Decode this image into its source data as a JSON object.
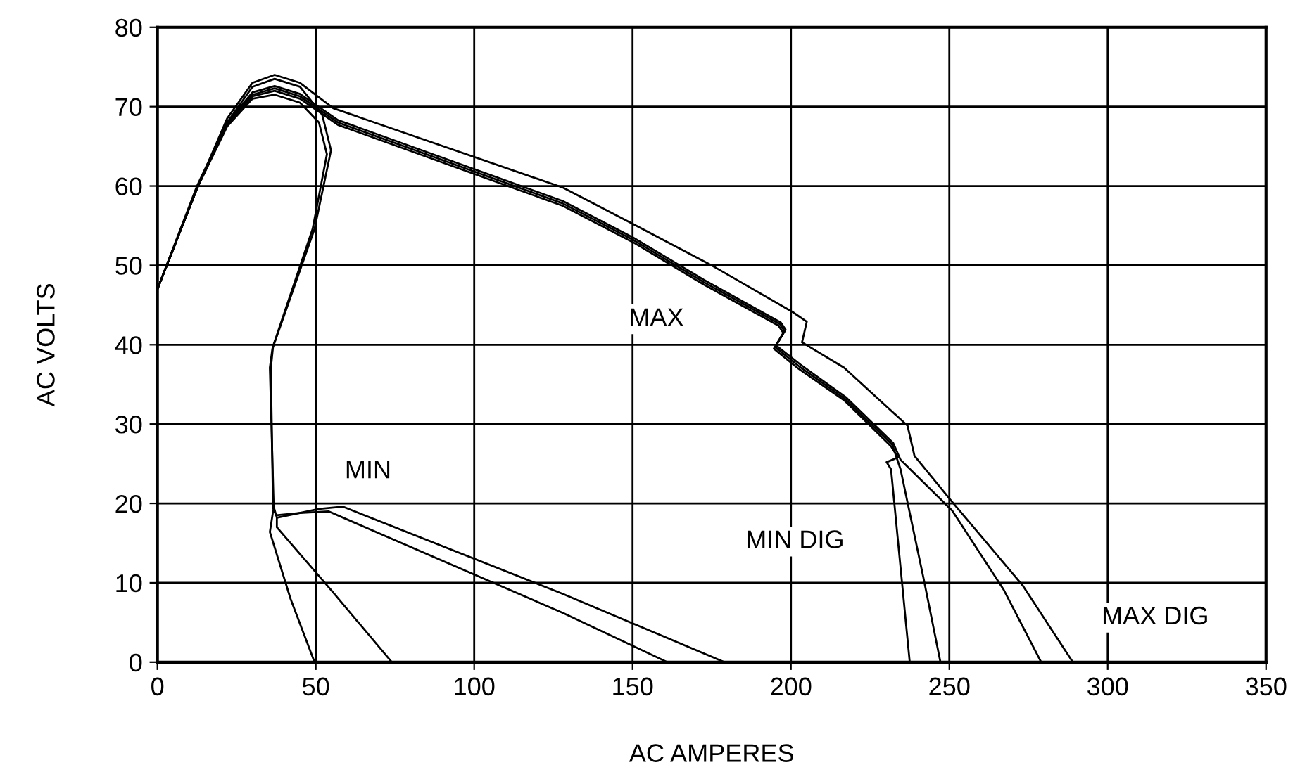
{
  "chart_data": {
    "type": "line",
    "xlabel": "AC AMPERES",
    "ylabel": "AC VOLTS",
    "xlim": [
      0,
      350
    ],
    "ylim": [
      0,
      80
    ],
    "xticks": [
      0,
      50,
      100,
      150,
      200,
      250,
      300,
      350
    ],
    "yticks": [
      0,
      10,
      20,
      30,
      40,
      50,
      60,
      70,
      80
    ],
    "grid": true,
    "legend": false,
    "marker": "none",
    "line_style": "solid",
    "series": [
      {
        "color": "#000000",
        "x": [
          0,
          12.5,
          22,
          30,
          37,
          45,
          52,
          54.8,
          49.6,
          36.3,
          35.5,
          36.7,
          37.7,
          51,
          58.5,
          128,
          179
        ],
        "values": [
          47,
          60,
          68,
          72.5,
          73.5,
          72.5,
          69,
          64.5,
          54.6,
          39.5,
          37.1,
          19.6,
          18.2,
          19.3,
          19.6,
          8.6,
          0
        ]
      },
      {
        "color": "#000000",
        "x": [
          0,
          12.6,
          22,
          30,
          37,
          45,
          51,
          53.5,
          49,
          36.5,
          35.8,
          36.5,
          37.5,
          45,
          54,
          128,
          161
        ],
        "values": [
          47,
          59.8,
          67.5,
          71,
          71.5,
          70.5,
          68,
          64,
          54.6,
          39.8,
          37,
          19.4,
          18.5,
          18.8,
          19,
          6.2,
          0
        ]
      },
      {
        "color": "#000000",
        "x": [
          36.5,
          35.5,
          42,
          49.6
        ],
        "values": [
          19,
          16.4,
          8,
          0
        ]
      },
      {
        "color": "#000000",
        "x": [
          37.7,
          37.7,
          55,
          74
        ],
        "values": [
          18.2,
          17,
          9,
          0
        ]
      },
      {
        "color": "#000000",
        "x": [
          0,
          12.6,
          22,
          30,
          37,
          45,
          57,
          128,
          150.2,
          172.4,
          196.1,
          197.6,
          194.6,
          202,
          216.8,
          231.6,
          233.8,
          230.2,
          231.6,
          237.5
        ],
        "values": [
          47,
          59.8,
          67.8,
          71.3,
          72,
          71,
          67.7,
          57.5,
          52.9,
          47.6,
          42.4,
          41.5,
          39.5,
          37.1,
          33,
          27.2,
          25.8,
          25.2,
          24.3,
          0
        ]
      },
      {
        "color": "#000000",
        "x": [
          0,
          12.6,
          22,
          30,
          37,
          45,
          57,
          128,
          150.2,
          172.4,
          196.5,
          198,
          195,
          202.5,
          217,
          232,
          234.6,
          242,
          247.2
        ],
        "values": [
          47,
          59.8,
          67.8,
          71.5,
          72.3,
          71.3,
          68,
          57.8,
          53.2,
          47.9,
          42.6,
          41.7,
          39.7,
          37.3,
          33.2,
          27.4,
          24.3,
          10.3,
          0
        ]
      },
      {
        "color": "#000000",
        "x": [
          0,
          12.6,
          22,
          30,
          37,
          45,
          57,
          128,
          150.2,
          172.4,
          196.8,
          198.3,
          195.3,
          203,
          217.3,
          232.3,
          234.6,
          250.9,
          267.2,
          279
        ],
        "values": [
          47,
          59.8,
          68,
          71.8,
          72.6,
          71.6,
          68.3,
          58.1,
          53.5,
          48.2,
          42.8,
          41.9,
          39.9,
          37.5,
          33.4,
          27.6,
          25.5,
          19.1,
          9.1,
          0
        ]
      },
      {
        "color": "#000000",
        "x": [
          0,
          12.6,
          22,
          30,
          37,
          45,
          55.5,
          128,
          150.2,
          175.4,
          200.6,
          205,
          203.5,
          216.8,
          236.8,
          239,
          250.9,
          273.1,
          289
        ],
        "values": [
          47,
          59.8,
          68.5,
          73,
          74,
          73,
          69.8,
          59.8,
          55.2,
          49.9,
          44.1,
          42.9,
          40.3,
          37.1,
          29.8,
          26,
          20.2,
          9.7,
          0
        ]
      }
    ],
    "annotations": [
      "MAX",
      "MIN",
      "MIN DIG",
      "MAX DIG"
    ]
  }
}
